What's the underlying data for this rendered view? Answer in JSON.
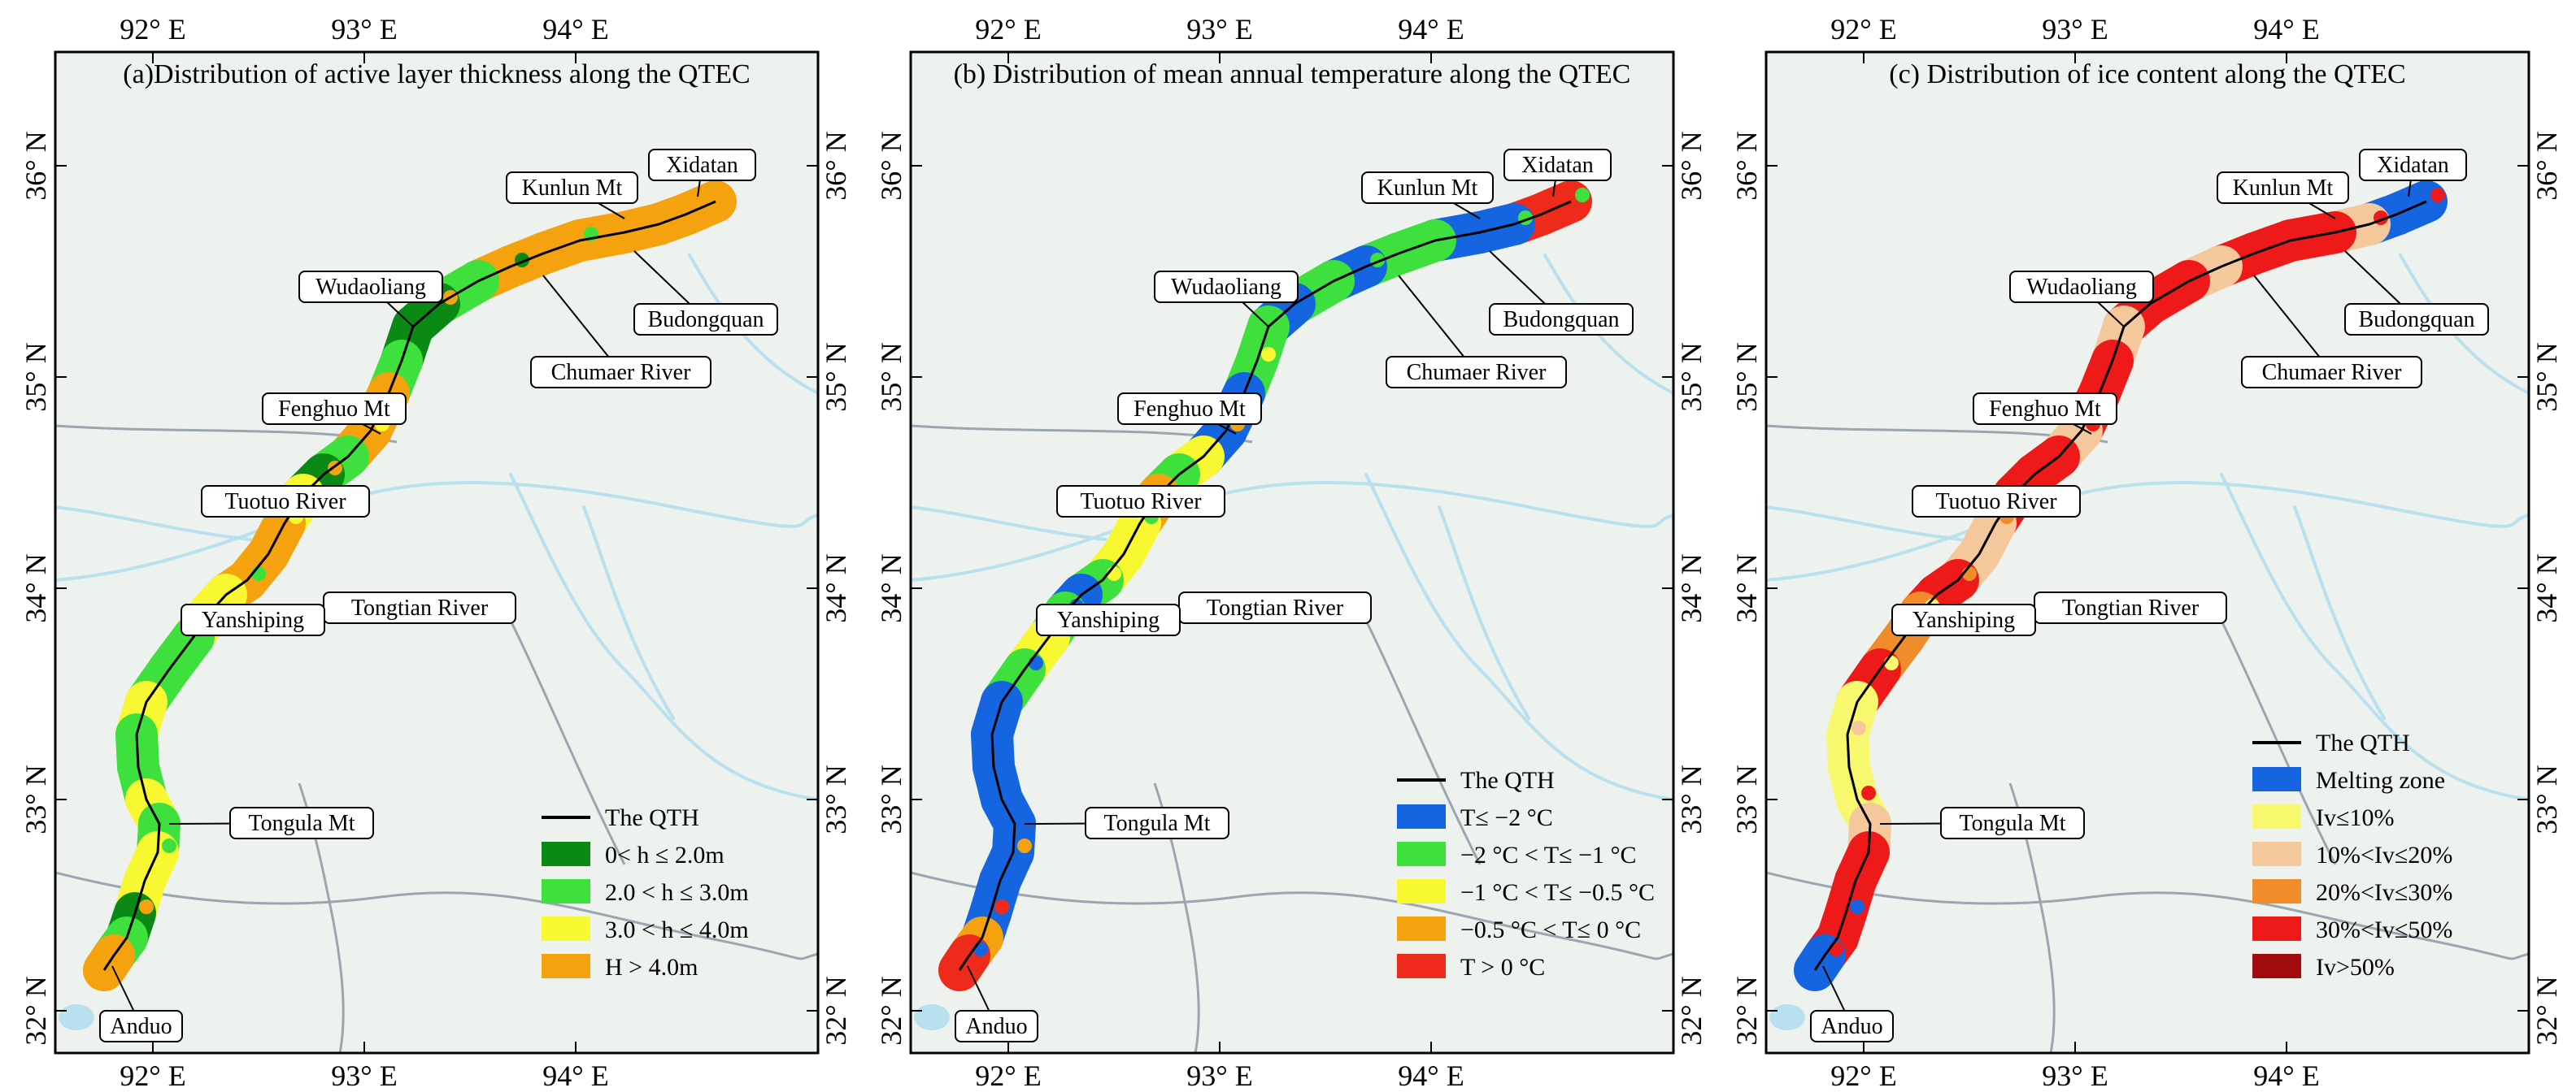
{
  "coordinates": {
    "lon_ticks": [
      "92° E",
      "93° E",
      "94° E"
    ],
    "lat_ticks": [
      "36° N",
      "35° N",
      "34° N",
      "33° N",
      "32° N"
    ]
  },
  "panels": [
    {
      "id": "a",
      "title": "(a)Distribution of active layer thickness along the QTEC",
      "legend": [
        {
          "kind": "line",
          "color": "#000000",
          "label": "The QTH"
        },
        {
          "kind": "swatch",
          "color": "#0a8a14",
          "label": "0< h ≤ 2.0m"
        },
        {
          "kind": "swatch",
          "color": "#3de03d",
          "label": "2.0 < h ≤ 3.0m"
        },
        {
          "kind": "swatch",
          "color": "#f8f832",
          "label": "3.0 < h ≤ 4.0m"
        },
        {
          "kind": "swatch",
          "color": "#f5a20f",
          "label": "H > 4.0m"
        }
      ],
      "segment_colors": [
        "#f5a20f",
        "#f5a20f",
        "#f5a20f",
        "#f5a20f",
        "#f5a20f",
        "#f5a20f",
        "#3de03d",
        "#0a8a14",
        "#0a8a14",
        "#3de03d",
        "#f5a20f",
        "#f5a20f",
        "#3de03d",
        "#0a8a14",
        "#f8f832",
        "#f5a20f",
        "#f5a20f",
        "#f8f832",
        "#f8f832",
        "#3de03d",
        "#3de03d",
        "#f8f832",
        "#3de03d",
        "#3de03d",
        "#f8f832",
        "#3de03d",
        "#f8f832",
        "#f8f832",
        "#0a8a14",
        "#3de03d",
        "#f5a20f"
      ]
    },
    {
      "id": "b",
      "title": "(b) Distribution of mean annual temperature along the QTEC",
      "legend": [
        {
          "kind": "line",
          "color": "#000000",
          "label": "The QTH"
        },
        {
          "kind": "swatch",
          "color": "#1565e0",
          "label": "T≤ −2 °C"
        },
        {
          "kind": "swatch",
          "color": "#3de03d",
          "label": "−2 °C < T≤ −1 °C"
        },
        {
          "kind": "swatch",
          "color": "#f8f832",
          "label": "−1 °C < T≤ −0.5 °C"
        },
        {
          "kind": "swatch",
          "color": "#f5a20f",
          "label": "−0.5 °C < T≤ 0 °C"
        },
        {
          "kind": "swatch",
          "color": "#ee2a1a",
          "label": "T > 0 °C"
        }
      ],
      "segment_colors": [
        "#ee2a1a",
        "#1565e0",
        "#1565e0",
        "#3de03d",
        "#3de03d",
        "#1565e0",
        "#3de03d",
        "#1565e0",
        "#3de03d",
        "#3de03d",
        "#1565e0",
        "#1565e0",
        "#f8f832",
        "#3de03d",
        "#f5a20f",
        "#f8f832",
        "#3de03d",
        "#1565e0",
        "#3de03d",
        "#f8f832",
        "#3de03d",
        "#1565e0",
        "#1565e0",
        "#1565e0",
        "#1565e0",
        "#1565e0",
        "#1565e0",
        "#1565e0",
        "#1565e0",
        "#f5a20f",
        "#ee2a1a"
      ]
    },
    {
      "id": "c",
      "title": "(c) Distribution of ice content along the QTEC",
      "legend": [
        {
          "kind": "line",
          "color": "#000000",
          "label": "The QTH"
        },
        {
          "kind": "swatch",
          "color": "#1565e0",
          "label": "Melting zone"
        },
        {
          "kind": "swatch",
          "color": "#f8f86e",
          "label": "Iv≤10%"
        },
        {
          "kind": "swatch",
          "color": "#f5c89c",
          "label": "10%<Iv≤20%"
        },
        {
          "kind": "swatch",
          "color": "#f08c2a",
          "label": "20%<Iv≤30%"
        },
        {
          "kind": "swatch",
          "color": "#ee1a1a",
          "label": "30%<Iv≤50%"
        },
        {
          "kind": "swatch",
          "color": "#a00c0c",
          "label": "Iv>50%"
        }
      ],
      "segment_colors": [
        "#1565e0",
        "#f5c89c",
        "#ee1a1a",
        "#ee1a1a",
        "#ee1a1a",
        "#f5c89c",
        "#ee1a1a",
        "#ee1a1a",
        "#f5c89c",
        "#ee1a1a",
        "#ee1a1a",
        "#f5c89c",
        "#ee1a1a",
        "#ee1a1a",
        "#ee1a1a",
        "#f5c89c",
        "#ee1a1a",
        "#ee1a1a",
        "#f08c2a",
        "#f08c2a",
        "#ee1a1a",
        "#f8f86e",
        "#f8f86e",
        "#f8f86e",
        "#f8f86e",
        "#f5c89c",
        "#ee1a1a",
        "#ee1a1a",
        "#ee1a1a",
        "#ee1a1a",
        "#1565e0"
      ]
    }
  ],
  "places": [
    "Xidatan",
    "Kunlun Mt",
    "Budongquan",
    "Chumaer River",
    "Wudaoliang",
    "Fenghuo Mt",
    "Tuotuo River",
    "Tongtian River",
    "Yanshiping",
    "Tongula Mt",
    "Anduo"
  ],
  "colors": {
    "background": "#eef2ee",
    "water": "#b9e0ee",
    "boundary": "#9aa6b0",
    "route": "#000000"
  }
}
